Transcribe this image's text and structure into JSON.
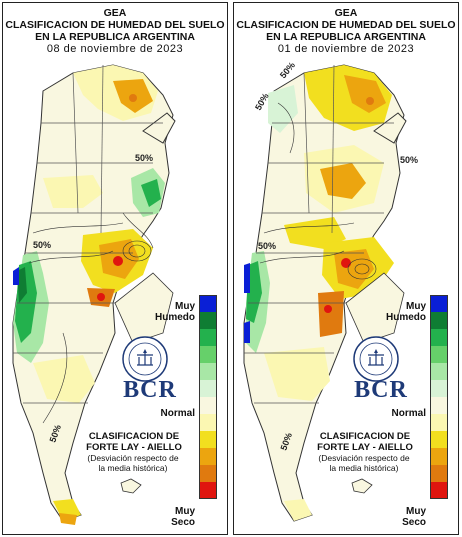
{
  "maps": [
    {
      "title_line1": "GEA",
      "title_line2": "CLASIFICACION DE HUMEDAD DEL SUELO",
      "title_line3": "EN LA REPUBLICA ARGENTINA",
      "date": "08  de  noviembre  de  2023",
      "contour_labels": [
        "50%",
        "50%",
        "50%"
      ]
    },
    {
      "title_line1": "GEA",
      "title_line2": "CLASIFICACION DE HUMEDAD DEL SUELO",
      "title_line3": "EN LA REPUBLICA ARGENTINA",
      "date": "01  de  noviembre  de  2023",
      "contour_labels": [
        "50%",
        "50%",
        "50%",
        "50%",
        "50%"
      ]
    }
  ],
  "legend": {
    "label_wet_1": "Muy",
    "label_wet_2": "Humedo",
    "label_normal": "Normal",
    "label_dry_1": "Muy",
    "label_dry_2": "Seco",
    "colors": [
      "#0a1fd6",
      "#0f7d33",
      "#23b14d",
      "#66d06a",
      "#a8e7a6",
      "#d8f3d6",
      "#f9f7e0",
      "#fbf7b2",
      "#f2df1f",
      "#eca50f",
      "#e07a0f",
      "#e0150f"
    ]
  },
  "logo": {
    "text": "BCR"
  },
  "classification": {
    "line1": "CLASIFICACION DE",
    "line2": "FORTE LAY - AIELLO",
    "note1": "(Desviación respecto de",
    "note2": "la media histórica)"
  },
  "colors": {
    "muy_humedo": "#0a1fd6",
    "humedo": "#23b14d",
    "normal": "#f9f7e0",
    "seco": "#eca50f",
    "muy_seco": "#e0150f"
  }
}
